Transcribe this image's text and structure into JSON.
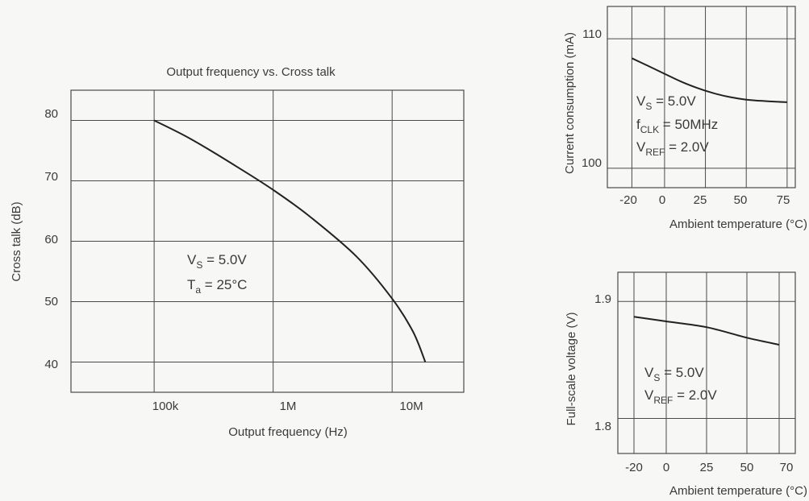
{
  "charts": [
    {
      "type": "line",
      "title": "Output frequency  vs. Cross talk",
      "xlabel": "Output frequency  (Hz)",
      "ylabel": "Cross talk  (dB)",
      "x_scale": "log",
      "x_ticks": [
        "100k",
        "1M",
        "10M"
      ],
      "y_ticks": [
        "80",
        "70",
        "60",
        "50",
        "40"
      ],
      "xlim": [
        20000,
        40000000
      ],
      "ylim": [
        35,
        85
      ],
      "grid": true,
      "annotations": [
        "V_S = 5.0V",
        "T_a = 25°C"
      ],
      "series": [
        {
          "x": [
            100000,
            200000,
            500000,
            1000000,
            2000000,
            5000000,
            10000000,
            15000000,
            19000000
          ],
          "y": [
            80,
            77,
            72.3,
            68.5,
            64.2,
            57.5,
            50.5,
            45,
            40
          ]
        }
      ]
    },
    {
      "type": "line",
      "title": "",
      "xlabel": "Ambient temperature (°C)",
      "ylabel": "Current consumption  (mA)",
      "x_ticks": [
        "-20",
        "0",
        "25",
        "50",
        "75"
      ],
      "y_ticks": [
        "110",
        "100"
      ],
      "xlim": [
        -35,
        80
      ],
      "ylim": [
        98.5,
        112.5
      ],
      "grid": true,
      "annotations": [
        "V_S = 5.0V",
        "f_CLK = 50MHz",
        "V_REF = 2.0V"
      ],
      "series": [
        {
          "x": [
            -20,
            -10,
            0,
            10,
            20,
            30,
            40,
            50,
            60,
            75
          ],
          "y": [
            108.5,
            107.9,
            107.3,
            106.7,
            106.2,
            105.8,
            105.5,
            105.3,
            105.2,
            105.1
          ]
        }
      ]
    },
    {
      "type": "line",
      "title": "",
      "xlabel": "Ambient temperature (°C)",
      "ylabel": "Full-scale voltage  (V)",
      "x_ticks": [
        "-20",
        "0",
        "25",
        "50",
        "70"
      ],
      "y_ticks": [
        "1.9",
        "1.8"
      ],
      "xlim": [
        -30,
        80
      ],
      "ylim": [
        1.77,
        1.925
      ],
      "grid": true,
      "annotations": [
        "V_S = 5.0V",
        "V_REF = 2.0V"
      ],
      "series": [
        {
          "x": [
            -20,
            0,
            25,
            50,
            70
          ],
          "y": [
            1.887,
            1.883,
            1.878,
            1.869,
            1.863
          ]
        }
      ]
    }
  ],
  "chart_data": [
    {
      "type": "line",
      "title": "Output frequency  vs. Cross talk",
      "xlabel": "Output frequency  (Hz)",
      "ylabel": "Cross talk  (dB)",
      "x_scale": "log",
      "xlim": [
        20000,
        40000000
      ],
      "ylim": [
        35,
        85
      ],
      "grid": true,
      "series": [
        {
          "x": [
            100000,
            200000,
            500000,
            1000000,
            2000000,
            5000000,
            10000000,
            15000000,
            19000000
          ],
          "y": [
            80,
            77,
            72.3,
            68.5,
            64.2,
            57.5,
            50.5,
            45,
            40
          ]
        }
      ]
    },
    {
      "type": "line",
      "title": "",
      "xlabel": "Ambient temperature (°C)",
      "ylabel": "Current consumption  (mA)",
      "xlim": [
        -35,
        80
      ],
      "ylim": [
        98.5,
        112.5
      ],
      "grid": true,
      "series": [
        {
          "x": [
            -20,
            -10,
            0,
            10,
            20,
            30,
            40,
            50,
            60,
            75
          ],
          "y": [
            108.5,
            107.9,
            107.3,
            106.7,
            106.2,
            105.8,
            105.5,
            105.3,
            105.2,
            105.1
          ]
        }
      ]
    },
    {
      "type": "line",
      "title": "",
      "xlabel": "Ambient temperature (°C)",
      "ylabel": "Full-scale voltage  (V)",
      "xlim": [
        -30,
        80
      ],
      "ylim": [
        1.77,
        1.925
      ],
      "grid": true,
      "series": [
        {
          "x": [
            -20,
            0,
            25,
            50,
            70
          ],
          "y": [
            1.887,
            1.883,
            1.878,
            1.869,
            1.863
          ]
        }
      ]
    }
  ]
}
